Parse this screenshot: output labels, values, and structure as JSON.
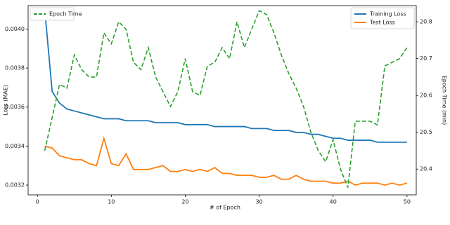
{
  "chart_data": {
    "type": "line",
    "x_label": "# of Epoch",
    "y_label": "Loss (MAE)",
    "y2_label": "Epoch Time (min)",
    "x": [
      1,
      2,
      3,
      4,
      5,
      6,
      7,
      8,
      9,
      10,
      11,
      12,
      13,
      14,
      15,
      16,
      17,
      18,
      19,
      20,
      21,
      22,
      23,
      24,
      25,
      26,
      27,
      28,
      29,
      30,
      31,
      32,
      33,
      34,
      35,
      36,
      37,
      38,
      39,
      40,
      41,
      42,
      43,
      44,
      45,
      46,
      47,
      48,
      49,
      50
    ],
    "xlim": [
      -1.25,
      51.25
    ],
    "xticks": [
      0,
      10,
      20,
      30,
      40,
      50
    ],
    "ylim": [
      0.00315,
      0.00412
    ],
    "yticks": [
      0.0032,
      0.0034,
      0.0036,
      0.0038,
      {
        "value": 0.004,
        "label": "0.0040"
      }
    ],
    "y2lim": [
      20.33,
      20.844
    ],
    "y2ticks": [
      20.4,
      20.5,
      20.6,
      20.7,
      20.8
    ],
    "series": [
      {
        "name": "Training Loss",
        "color": "#1f77b4",
        "values": [
          0.0041,
          0.00368,
          0.00362,
          0.00359,
          0.00358,
          0.00357,
          0.00356,
          0.00355,
          0.00354,
          0.00354,
          0.00354,
          0.00353,
          0.00353,
          0.00353,
          0.00353,
          0.00352,
          0.00352,
          0.00352,
          0.00352,
          0.00351,
          0.00351,
          0.00351,
          0.00351,
          0.0035,
          0.0035,
          0.0035,
          0.0035,
          0.0035,
          0.00349,
          0.00349,
          0.00349,
          0.00348,
          0.00348,
          0.00348,
          0.00347,
          0.00347,
          0.00346,
          0.00346,
          0.00345,
          0.00344,
          0.00344,
          0.00343,
          0.00343,
          0.00343,
          0.00343,
          0.00342,
          0.00342,
          0.00342,
          0.00342,
          0.00342
        ]
      },
      {
        "name": "Test Loss",
        "color": "#ff7f0e",
        "values": [
          0.0034,
          0.00339,
          0.00335,
          0.00334,
          0.00333,
          0.00333,
          0.00331,
          0.0033,
          0.00344,
          0.00331,
          0.0033,
          0.00336,
          0.00328,
          0.00328,
          0.00328,
          0.00329,
          0.0033,
          0.00327,
          0.00327,
          0.00328,
          0.00327,
          0.00328,
          0.00327,
          0.00329,
          0.00326,
          0.00326,
          0.00325,
          0.00325,
          0.00325,
          0.00324,
          0.00324,
          0.00325,
          0.00323,
          0.00323,
          0.00325,
          0.00323,
          0.00322,
          0.00322,
          0.00322,
          0.00321,
          0.00321,
          0.00322,
          0.0032,
          0.00321,
          0.00321,
          0.00321,
          0.0032,
          0.00321,
          0.0032,
          0.00321
        ]
      },
      {
        "name": "Epoch Time",
        "color": "#2ca02c",
        "axis": "y2",
        "dashed": true,
        "values": [
          20.45,
          20.54,
          20.63,
          20.62,
          20.71,
          20.67,
          20.65,
          20.65,
          20.77,
          20.74,
          20.8,
          20.78,
          20.69,
          20.67,
          20.73,
          20.65,
          20.61,
          20.57,
          20.61,
          20.7,
          20.61,
          20.6,
          20.68,
          20.69,
          20.73,
          20.7,
          20.8,
          20.73,
          20.78,
          20.83,
          20.82,
          20.77,
          20.71,
          20.66,
          20.62,
          20.57,
          20.5,
          20.45,
          20.42,
          20.48,
          20.4,
          20.35,
          20.53,
          20.53,
          20.53,
          20.52,
          20.68,
          20.69,
          20.7,
          20.73
        ]
      }
    ]
  }
}
